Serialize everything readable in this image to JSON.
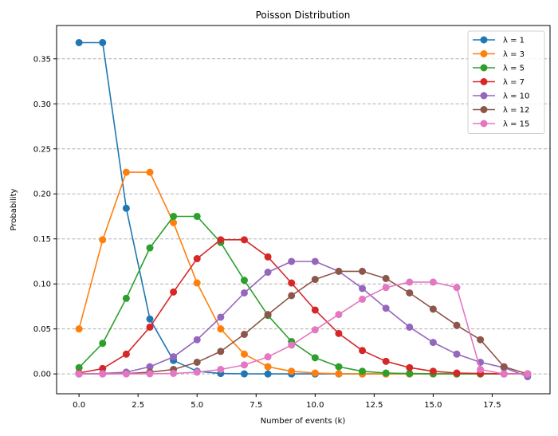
{
  "chart_data": {
    "type": "line",
    "title": "Poisson Distribution",
    "xlabel": "Number of events (k)",
    "ylabel": "Probability",
    "xlim": [
      -0.95,
      19.95
    ],
    "ylim": [
      -0.022,
      0.387
    ],
    "xticks": [
      0.0,
      2.5,
      5.0,
      7.5,
      10.0,
      12.5,
      15.0,
      17.5
    ],
    "xtick_labels": [
      "0.0",
      "2.5",
      "5.0",
      "7.5",
      "10.0",
      "12.5",
      "15.0",
      "17.5"
    ],
    "yticks": [
      0.0,
      0.05,
      0.1,
      0.15,
      0.2,
      0.25,
      0.3,
      0.35
    ],
    "ytick_labels": [
      "0.00",
      "0.05",
      "0.10",
      "0.15",
      "0.20",
      "0.25",
      "0.30",
      "0.35"
    ],
    "grid": "y-dashed",
    "legend_position": "top-right",
    "x": [
      0,
      1,
      2,
      3,
      4,
      5,
      6,
      7,
      8,
      9,
      10,
      11,
      12,
      13,
      14,
      15,
      16,
      17,
      18,
      19
    ],
    "series": [
      {
        "name": "λ = 1",
        "color": "#1f77b4",
        "values": [
          0.368,
          0.368,
          0.184,
          0.061,
          0.015,
          0.003,
          0.0005,
          0.0001,
          0,
          0,
          0,
          0,
          0,
          0,
          0,
          0,
          0,
          0,
          0,
          0
        ]
      },
      {
        "name": "λ = 3",
        "color": "#ff7f0e",
        "values": [
          0.05,
          0.149,
          0.224,
          0.224,
          0.168,
          0.101,
          0.05,
          0.022,
          0.008,
          0.003,
          0.001,
          0.0002,
          0,
          0,
          0,
          0,
          0,
          0,
          0,
          0
        ]
      },
      {
        "name": "λ = 5",
        "color": "#2ca02c",
        "values": [
          0.007,
          0.034,
          0.084,
          0.14,
          0.175,
          0.175,
          0.146,
          0.104,
          0.065,
          0.036,
          0.018,
          0.008,
          0.003,
          0.001,
          0.0005,
          0.0002,
          0,
          0,
          0,
          0
        ]
      },
      {
        "name": "λ = 7",
        "color": "#d62728",
        "values": [
          0.001,
          0.006,
          0.022,
          0.052,
          0.091,
          0.128,
          0.149,
          0.149,
          0.13,
          0.101,
          0.071,
          0.045,
          0.026,
          0.014,
          0.007,
          0.003,
          0.001,
          0.0006,
          0.0002,
          0.0001
        ]
      },
      {
        "name": "λ = 10",
        "color": "#9467bd",
        "values": [
          0.0,
          0.0005,
          0.002,
          0.008,
          0.019,
          0.038,
          0.063,
          0.09,
          0.113,
          0.125,
          0.125,
          0.114,
          0.095,
          0.073,
          0.052,
          0.035,
          0.022,
          0.013,
          0.007,
          -0.003
        ]
      },
      {
        "name": "λ = 12",
        "color": "#8c564b",
        "values": [
          0.0,
          0.0001,
          0.0004,
          0.002,
          0.005,
          0.013,
          0.025,
          0.044,
          0.066,
          0.087,
          0.105,
          0.114,
          0.114,
          0.106,
          0.09,
          0.072,
          0.054,
          0.038,
          0.008,
          0.0
        ]
      },
      {
        "name": "λ = 15",
        "color": "#e377c2",
        "values": [
          0.0,
          0.0,
          0.0,
          0.0002,
          0.0006,
          0.002,
          0.005,
          0.01,
          0.019,
          0.032,
          0.049,
          0.066,
          0.083,
          0.096,
          0.102,
          0.102,
          0.096,
          0.005,
          0.0,
          0.0
        ]
      }
    ]
  }
}
